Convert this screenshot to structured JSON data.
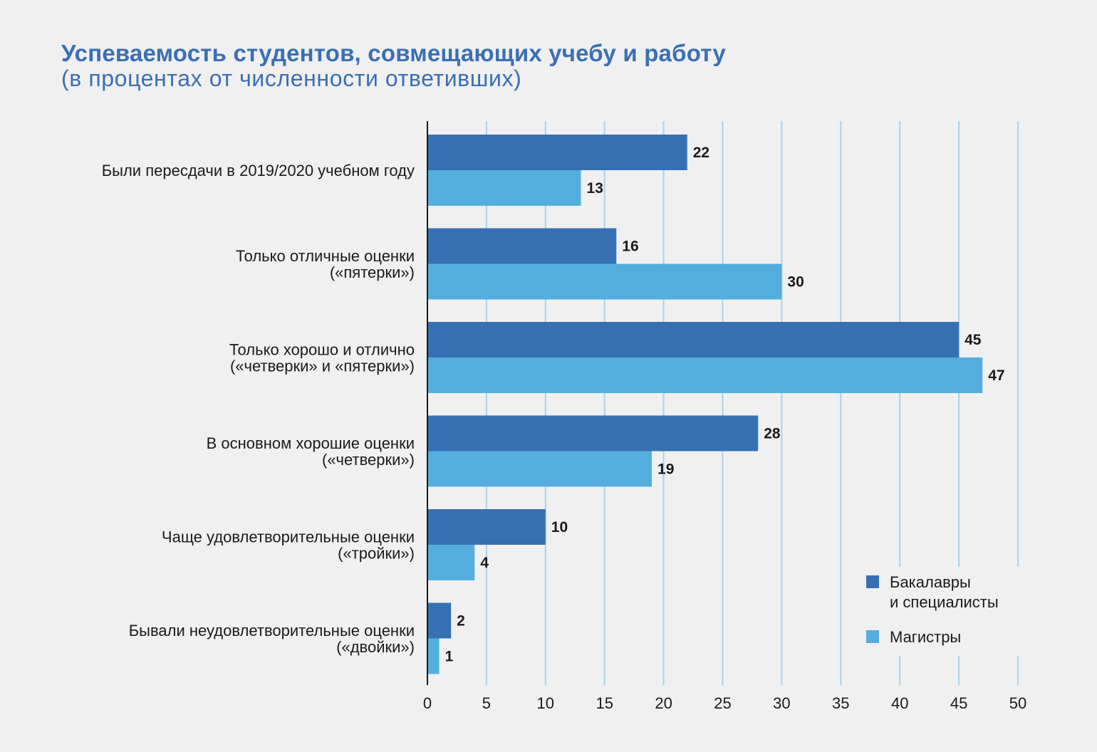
{
  "chart_data": {
    "type": "bar",
    "orientation": "horizontal",
    "title": "Успеваемость студентов, совмещающих учебу и работу",
    "subtitle": "(в процентах от численности ответивших)",
    "categories": [
      [
        "Были пересдачи в 2019/2020 учебном году"
      ],
      [
        "Только отличные оценки",
        "(«пятерки»)"
      ],
      [
        "Только хорошо и отлично",
        "(«четверки» и «пятерки»)"
      ],
      [
        "В основном хорошие оценки",
        "(«четверки»)"
      ],
      [
        "Чаще удовлетворительные оценки",
        "(«тройки»)"
      ],
      [
        "Бывали неудовлетворительные оценки",
        "(«двойки»)"
      ]
    ],
    "series": [
      {
        "name": [
          "Бакалавры",
          "и специалисты"
        ],
        "color": "#3670b2",
        "values": [
          22,
          16,
          45,
          28,
          10,
          2
        ]
      },
      {
        "name": [
          "Магистры"
        ],
        "color": "#54aedd",
        "values": [
          13,
          30,
          47,
          19,
          4,
          1
        ]
      }
    ],
    "xlim": [
      0,
      50
    ],
    "xticks": [
      0,
      5,
      10,
      15,
      20,
      25,
      30,
      35,
      40,
      45,
      50
    ],
    "grid": true,
    "gridColor": "#a9d3ec",
    "legend_position": "bottom-right"
  }
}
